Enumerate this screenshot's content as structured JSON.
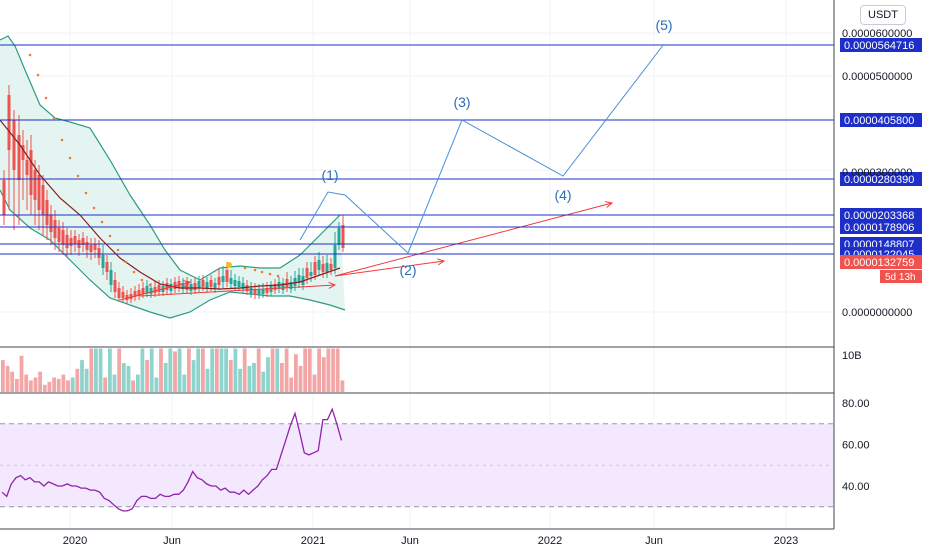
{
  "toolbar": {
    "currency": "USDT"
  },
  "chart_data": [
    {
      "panel": "price",
      "type": "candlestick",
      "y_axis_ticks": [
        "0.0000600000",
        "0.0000500000",
        "0.0000300000",
        "0.0000000000"
      ],
      "horizontal_levels": [
        {
          "value": "0.0000564716",
          "color": "#1e2fc9"
        },
        {
          "value": "0.0000405800",
          "color": "#1e2fc9"
        },
        {
          "value": "0.0000280390",
          "color": "#1e2fc9"
        },
        {
          "value": "0.0000203368",
          "color": "#1e2fc9"
        },
        {
          "value": "0.0000178906",
          "color": "#1e2fc9"
        },
        {
          "value": "0.0000148807",
          "color": "#1e2fc9"
        },
        {
          "value": "0.0000122045",
          "color": "#1e2fc9"
        }
      ],
      "current_price": {
        "value": "0.0000132759",
        "countdown": "5d 13h",
        "color": "#ef5350"
      },
      "elliott_wave_labels": [
        "(1)",
        "(2)",
        "(3)",
        "(4)",
        "(5)"
      ],
      "overlays": [
        "bollinger-bands",
        "moving-average",
        "parabolic-sar",
        "trend-arrows"
      ],
      "colors": {
        "up": "#26a69a",
        "down": "#ef5350",
        "wave": "#4a90d9",
        "label": "#2a6eb5",
        "band_fill": "#dff3ef"
      }
    },
    {
      "panel": "volume",
      "type": "bar",
      "y_axis_ticks": [
        "10B"
      ]
    },
    {
      "panel": "rsi",
      "type": "line",
      "y_axis_ticks": [
        "80.00",
        "60.00",
        "40.00"
      ],
      "values": [
        37,
        35,
        41,
        44,
        45,
        43,
        44,
        42,
        42,
        40,
        42,
        41,
        40,
        40,
        41,
        40,
        40,
        39,
        39,
        38,
        38,
        37,
        34,
        33,
        31,
        29,
        28,
        28,
        29,
        33,
        35,
        35,
        34,
        34,
        36,
        35,
        35,
        36,
        36,
        38,
        42,
        47,
        44,
        43,
        41,
        40,
        40,
        38,
        39,
        37,
        37,
        36,
        38,
        36,
        38,
        40,
        43,
        45,
        48,
        48,
        55,
        62,
        69,
        75,
        66,
        56,
        55,
        56,
        57,
        72,
        72,
        77,
        70,
        62
      ],
      "band_upper": 70,
      "band_lower": 30,
      "line_color": "#8e24aa"
    }
  ],
  "x_axis": {
    "labels": [
      "2020",
      "Jun",
      "2021",
      "Jun",
      "2022",
      "Jun",
      "2023"
    ]
  }
}
